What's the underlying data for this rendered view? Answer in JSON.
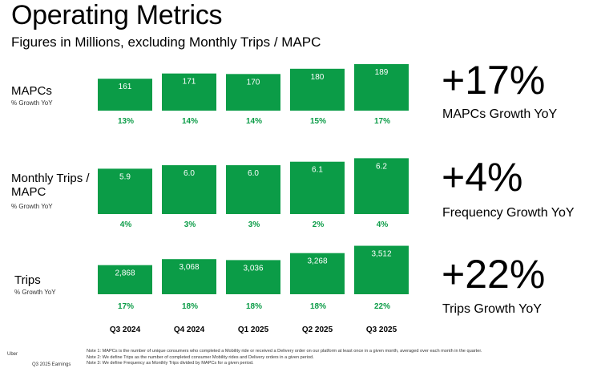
{
  "header": {
    "title": "Operating Metrics",
    "subtitle": "Figures in Millions, excluding Monthly Trips / MAPC"
  },
  "chart_data": [
    {
      "type": "bar",
      "title": "MAPCs",
      "growth_label": "% Growth YoY",
      "categories": [
        "Q3 2024",
        "Q4 2024",
        "Q1 2025",
        "Q2 2025",
        "Q3 2025"
      ],
      "values": [
        161,
        171,
        170,
        180,
        189
      ],
      "value_labels": [
        "161",
        "171",
        "170",
        "180",
        "189"
      ],
      "growth": [
        "13%",
        "14%",
        "14%",
        "15%",
        "17%"
      ],
      "ylim": [
        100,
        195
      ]
    },
    {
      "type": "bar",
      "title": "Monthly Trips / MAPC",
      "growth_label": "% Growth YoY",
      "categories": [
        "Q3 2024",
        "Q4 2024",
        "Q1 2025",
        "Q2 2025",
        "Q3 2025"
      ],
      "values": [
        5.9,
        6.0,
        6.0,
        6.1,
        6.2
      ],
      "value_labels": [
        "5.9",
        "6.0",
        "6.0",
        "6.1",
        "6.2"
      ],
      "growth": [
        "4%",
        "3%",
        "3%",
        "2%",
        "4%"
      ],
      "ylim": [
        4.6,
        6.3
      ]
    },
    {
      "type": "bar",
      "title": "Trips",
      "growth_label": "% Growth YoY",
      "categories": [
        "Q3 2024",
        "Q4 2024",
        "Q1 2025",
        "Q2 2025",
        "Q3 2025"
      ],
      "values": [
        2868,
        3068,
        3036,
        3268,
        3512
      ],
      "value_labels": [
        "2,868",
        "3,068",
        "3,036",
        "3,268",
        "3,512"
      ],
      "growth": [
        "17%",
        "18%",
        "18%",
        "18%",
        "22%"
      ],
      "ylim": [
        1900,
        3580
      ]
    }
  ],
  "highlights": [
    {
      "value": "+17%",
      "label": "MAPCs Growth YoY"
    },
    {
      "value": "+4%",
      "label": "Frequency Growth YoY"
    },
    {
      "value": "+22%",
      "label": "Trips Growth YoY"
    }
  ],
  "footer": {
    "brand": "Uber",
    "report": "Q3 2025 Earnings",
    "notes": [
      "Note 1: MAPCs is the number of unique consumers who completed a Mobility ride or received a Delivery order on our platform at least once in a given month, averaged over each month in the quarter.",
      "Note 2: We define Trips as the number of completed consumer Mobility rides and Delivery orders in a given period.",
      "Note 3: We define Frequency as Monthly Trips divided by MAPCs for a given period."
    ]
  },
  "colors": {
    "bar": "#0b9c47",
    "bar_label": "#ffffff",
    "growth_text": "#0b9c47",
    "text": "#000000"
  }
}
